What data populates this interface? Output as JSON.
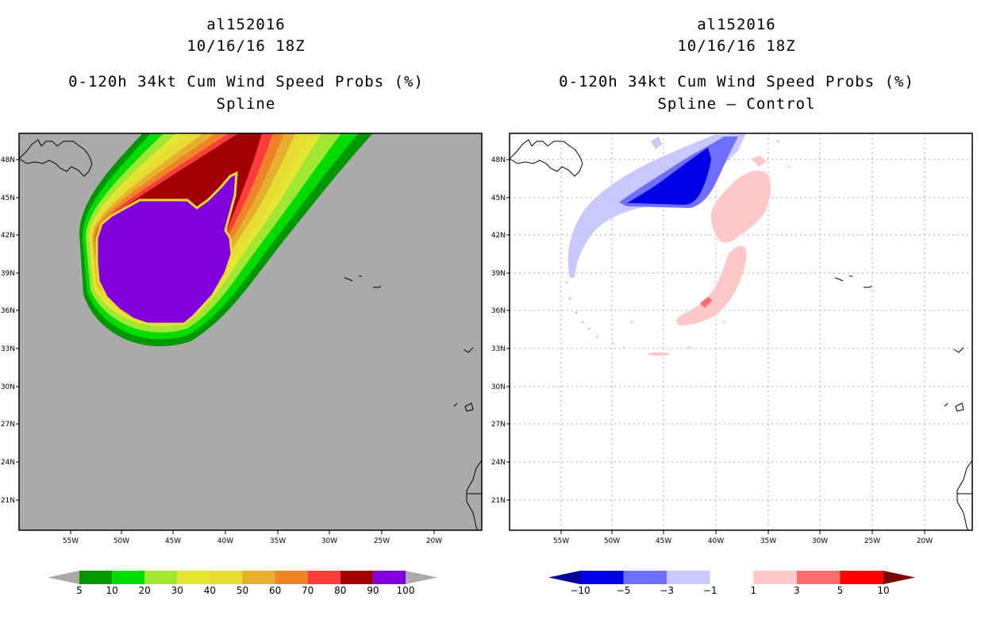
{
  "left_panel": {
    "storm_id": "al152016",
    "datetime": "10/16/16 18Z",
    "product": "0-120h 34kt Cum Wind Speed Probs (%)",
    "subtitle": "Spline"
  },
  "right_panel": {
    "storm_id": "al152016",
    "datetime": "10/16/16 18Z",
    "product": "0-120h 34kt Cum Wind Speed Probs (%)",
    "subtitle": "Spline – Control"
  },
  "axes": {
    "lon_labels": [
      "55W",
      "50W",
      "45W",
      "40W",
      "35W",
      "30W",
      "25W",
      "20W"
    ],
    "lat_labels": [
      "48N",
      "45N",
      "42N",
      "39N",
      "36N",
      "33N",
      "30N",
      "27N",
      "24N",
      "21N"
    ]
  },
  "left_colorbar": {
    "labels": [
      "5",
      "10",
      "20",
      "30",
      "40",
      "50",
      "60",
      "70",
      "80",
      "90",
      "100"
    ],
    "colors": [
      "#009600",
      "#00dc00",
      "#a0e632",
      "#e6e632",
      "#e6dc32",
      "#e6af2d",
      "#f08228",
      "#fa3c3c",
      "#a00000",
      "#8200dc"
    ],
    "ends": [
      "#aaaaaa",
      "#aaaaaa"
    ]
  },
  "right_colorbar": {
    "labels": [
      "−10",
      "−5",
      "−3",
      "−1",
      "1",
      "3",
      "5",
      "10"
    ],
    "colors": [
      "#0000e6",
      "#6e6eff",
      "#c8c8ff",
      "#ffffff",
      "#ffc8c8",
      "#ff6e6e",
      "#ff0000"
    ],
    "ends": [
      "#000096",
      "#780000"
    ]
  }
}
